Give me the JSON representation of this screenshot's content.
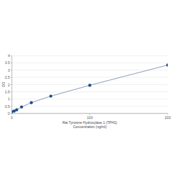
{
  "chart_data": {
    "type": "line",
    "x_label": "Rat Tyrosine Hydroxylase 1 (TPH1)\nConcentration (ng/ml)",
    "y_label": "OD",
    "x": [
      0,
      3.125,
      6.25,
      12.5,
      25,
      50,
      100,
      200
    ],
    "values": [
      0.12,
      0.17,
      0.25,
      0.45,
      0.75,
      1.2,
      1.95,
      3.35
    ],
    "color": "#1f4e8c",
    "marker": "circle",
    "line_style": "solid",
    "xlim": [
      0,
      200
    ],
    "xticks": [
      0,
      100,
      200
    ],
    "ylim": [
      0,
      4
    ],
    "yticks": [
      0,
      0.5,
      1,
      1.5,
      2,
      2.5,
      3,
      3.5,
      4
    ],
    "grid": true
  }
}
